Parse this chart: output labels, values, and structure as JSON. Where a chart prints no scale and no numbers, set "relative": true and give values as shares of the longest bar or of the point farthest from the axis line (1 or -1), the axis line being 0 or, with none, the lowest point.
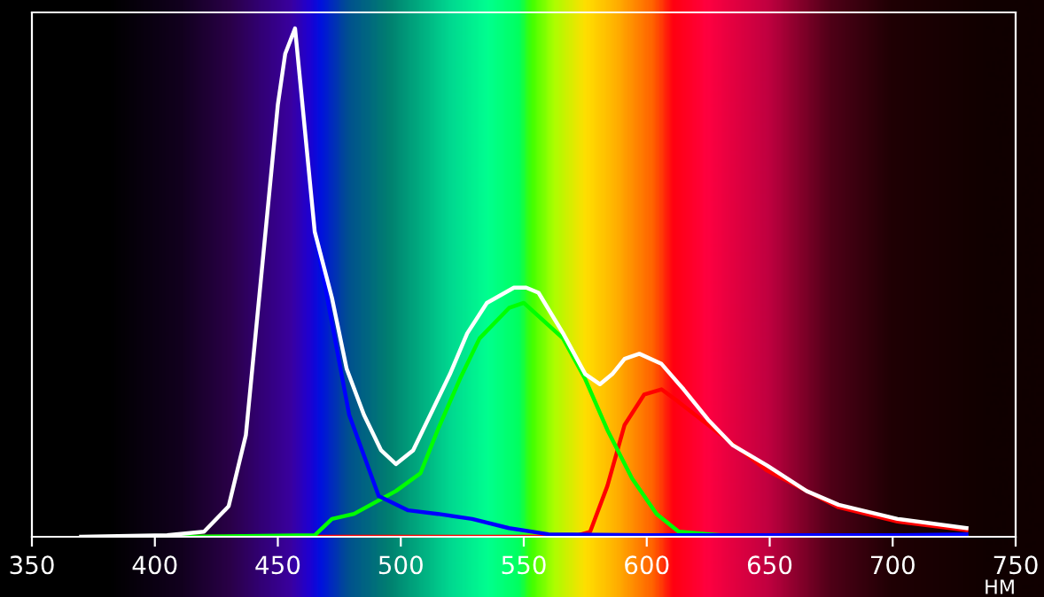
{
  "chart_data": {
    "type": "line",
    "relative": true,
    "xlabel": "НМ",
    "xlim": [
      350,
      750
    ],
    "xticks": [
      350,
      400,
      450,
      500,
      550,
      600,
      650,
      700,
      750
    ],
    "grid": false,
    "legend": false,
    "marker": "none",
    "line_style": "solid",
    "series": [
      {
        "color": "#ff0000",
        "x": [
          405,
          570,
          577,
          584,
          591,
          599,
          606,
          613,
          625,
          649,
          678,
          702,
          730
        ],
        "values": [
          0,
          0,
          0.01,
          0.1,
          0.22,
          0.28,
          0.29,
          0.265,
          0.22,
          0.13,
          0.058,
          0.03,
          0.013
        ]
      },
      {
        "color": "#00ff00",
        "x": [
          410,
          465,
          472,
          481,
          498,
          508,
          515,
          524,
          532,
          544,
          550,
          566,
          575,
          584,
          594,
          604,
          613,
          630,
          730
        ],
        "values": [
          0,
          0.003,
          0.035,
          0.045,
          0.09,
          0.125,
          0.21,
          0.31,
          0.39,
          0.45,
          0.46,
          0.39,
          0.31,
          0.21,
          0.115,
          0.045,
          0.01,
          0.003,
          0
        ]
      },
      {
        "color": "#0000ff",
        "x": [
          465,
          472,
          479,
          491,
          503,
          515,
          529,
          544,
          560,
          600,
          700,
          730
        ],
        "values": [
          0.6,
          0.42,
          0.24,
          0.08,
          0.052,
          0.045,
          0.035,
          0.017,
          0.005,
          0.003,
          0.003,
          0.005
        ]
      },
      {
        "color": "#ffffff",
        "x": [
          370,
          405,
          420,
          430,
          437,
          443,
          450,
          453,
          457,
          461,
          465,
          472,
          478,
          485,
          492,
          498,
          505,
          512,
          520,
          527,
          535,
          546,
          551,
          556,
          566,
          575,
          581,
          586,
          591,
          597,
          606,
          615,
          625,
          635,
          649,
          665,
          678,
          702,
          730
        ],
        "values": [
          0,
          0.003,
          0.01,
          0.06,
          0.2,
          0.5,
          0.85,
          0.95,
          1.0,
          0.8,
          0.6,
          0.47,
          0.33,
          0.24,
          0.17,
          0.143,
          0.17,
          0.24,
          0.32,
          0.4,
          0.46,
          0.49,
          0.49,
          0.48,
          0.4,
          0.32,
          0.3,
          0.32,
          0.35,
          0.36,
          0.34,
          0.29,
          0.23,
          0.18,
          0.14,
          0.09,
          0.063,
          0.035,
          0.017
        ]
      }
    ]
  }
}
